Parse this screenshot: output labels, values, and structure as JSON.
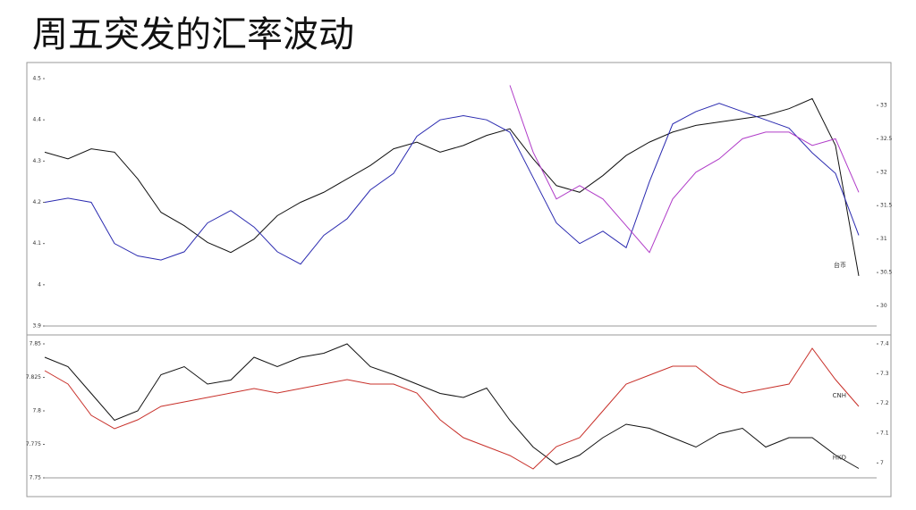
{
  "slide_title": "周五突发的汇率波动",
  "chart_data": [
    {
      "type": "line",
      "categories": [
        null,
        null,
        null,
        null,
        null,
        null,
        null,
        null,
        null,
        null,
        null,
        null,
        null,
        null,
        null,
        null,
        null,
        null,
        null,
        null,
        null,
        null,
        null,
        null,
        null,
        null,
        null,
        null,
        null,
        null,
        null,
        null,
        null,
        null,
        null,
        null
      ],
      "ylim": [
        3.9,
        4.5
      ],
      "yticks": [
        3.9,
        4.0,
        4.1,
        4.2,
        4.3,
        4.4,
        4.5
      ],
      "y2lim": [
        29.7,
        33.4
      ],
      "y2ticks": [
        30,
        30.5,
        31,
        31.5,
        32,
        32.5,
        33
      ],
      "series": [
        {
          "name": "台币",
          "color": "#111111",
          "axis": "y2",
          "values": [
            32.3,
            32.2,
            32.35,
            32.3,
            31.9,
            31.4,
            31.2,
            30.95,
            30.8,
            31.0,
            31.35,
            31.55,
            31.7,
            31.9,
            32.1,
            32.35,
            32.45,
            32.3,
            32.4,
            32.55,
            32.65,
            32.2,
            31.8,
            31.7,
            31.95,
            32.25,
            32.45,
            32.6,
            32.7,
            32.75,
            32.8,
            32.85,
            32.95,
            33.1,
            32.4,
            30.45
          ]
        },
        {
          "color": "#2b2bb0",
          "values": [
            4.2,
            4.21,
            4.2,
            4.1,
            4.07,
            4.06,
            4.08,
            4.15,
            4.18,
            4.14,
            4.08,
            4.05,
            4.12,
            4.16,
            4.23,
            4.27,
            4.36,
            4.4,
            4.41,
            4.4,
            4.37,
            4.26,
            4.15,
            4.1,
            4.13,
            4.09,
            4.25,
            4.39,
            4.42,
            4.44,
            4.42,
            4.4,
            4.38,
            4.32,
            4.27,
            4.12
          ]
        },
        {
          "color": "#b03cc8",
          "axis": "y2",
          "values": [
            null,
            null,
            null,
            null,
            null,
            null,
            null,
            null,
            null,
            null,
            null,
            null,
            null,
            null,
            null,
            null,
            null,
            null,
            null,
            null,
            33.3,
            32.3,
            31.6,
            31.8,
            31.6,
            31.2,
            30.8,
            31.6,
            32.0,
            32.2,
            32.5,
            32.6,
            32.6,
            32.4,
            32.5,
            31.7
          ]
        }
      ]
    },
    {
      "type": "line",
      "categories": [
        null,
        null,
        null,
        null,
        null,
        null,
        null,
        null,
        null,
        null,
        null,
        null,
        null,
        null,
        null,
        null,
        null,
        null,
        null,
        null,
        null,
        null,
        null,
        null,
        null,
        null,
        null,
        null,
        null,
        null,
        null,
        null,
        null,
        null,
        null,
        null
      ],
      "ylim": [
        7.75,
        7.85
      ],
      "yticks": [
        7.75,
        7.775,
        7.8,
        7.825,
        7.85
      ],
      "y2lim": [
        6.95,
        7.4
      ],
      "y2ticks": [
        7,
        7.1,
        7.2,
        7.3,
        7.4
      ],
      "series": [
        {
          "name": "HKD",
          "color": "#111111",
          "values": [
            7.84,
            7.833,
            7.813,
            7.793,
            7.8,
            7.827,
            7.833,
            7.82,
            7.823,
            7.84,
            7.833,
            7.84,
            7.843,
            7.85,
            7.833,
            7.827,
            7.82,
            7.813,
            7.81,
            7.817,
            7.793,
            7.773,
            7.76,
            7.767,
            7.78,
            7.79,
            7.787,
            7.78,
            7.773,
            7.783,
            7.787,
            7.773,
            7.78,
            7.78,
            7.767,
            7.757
          ]
        },
        {
          "name": "CNH",
          "color": "#c8302a",
          "axis": "y2",
          "values": [
            7.31,
            7.265,
            7.16,
            7.115,
            7.145,
            7.19,
            7.205,
            7.22,
            7.235,
            7.25,
            7.235,
            7.25,
            7.265,
            7.28,
            7.265,
            7.265,
            7.235,
            7.145,
            7.085,
            7.055,
            7.025,
            6.98,
            7.055,
            7.085,
            7.175,
            7.265,
            7.295,
            7.325,
            7.325,
            7.265,
            7.235,
            7.25,
            7.265,
            7.385,
            7.28,
            7.19
          ]
        }
      ]
    }
  ]
}
